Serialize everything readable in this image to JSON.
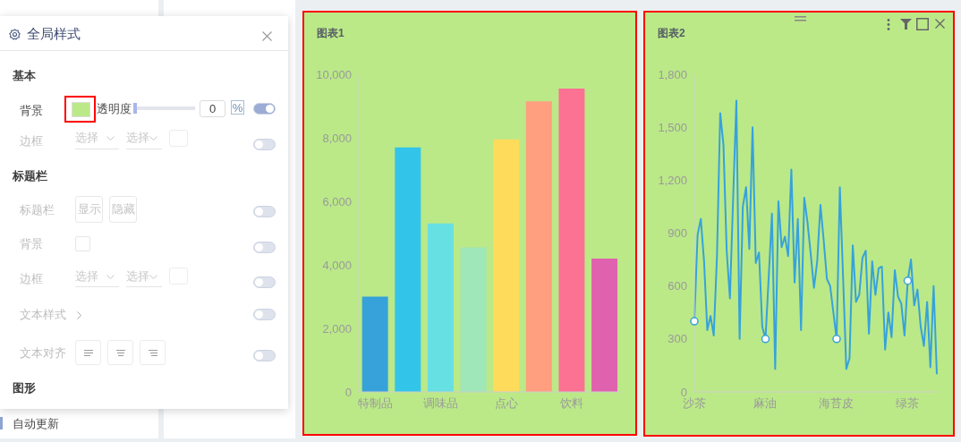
{
  "chart_data": [
    {
      "type": "other",
      "title": "全局样式",
      "annotations": [
        "基本",
        "背景",
        "透明度",
        "0",
        "%",
        "边框",
        "选择",
        "选择",
        "标题栏",
        "标题栏",
        "显示",
        "隐藏",
        "背景",
        "边框",
        "选择",
        "选择",
        "文本样式",
        "文本对齐",
        "图形",
        "自动更新"
      ]
    },
    {
      "type": "bar",
      "title": "图表1",
      "categories": [
        "特制品",
        null,
        "调味品",
        null,
        "点心",
        null,
        "饮料",
        null
      ],
      "values": [
        3000,
        7700,
        5300,
        4550,
        7950,
        9150,
        9550,
        4200
      ],
      "colors": [
        "#37a2da",
        "#32c5e9",
        "#67e0e3",
        "#9fe6b8",
        "#ffdb5c",
        "#ff9f7f",
        "#fb7293",
        "#e062ae"
      ],
      "ylim": [
        0,
        10000
      ],
      "yticks": [
        0,
        {
          "value": 2000,
          "label": "2,000"
        },
        {
          "value": 4000,
          "label": "4,000"
        },
        {
          "value": 6000,
          "label": "6,000"
        },
        {
          "value": 8000,
          "label": "8,000"
        },
        {
          "value": 10000,
          "label": "10,000"
        }
      ]
    },
    {
      "type": "line",
      "title": "图表2",
      "categories": [
        "沙茶",
        null,
        null,
        null,
        null,
        null,
        null,
        null,
        null,
        null,
        null,
        null,
        null,
        null,
        null,
        null,
        null,
        null,
        null,
        null,
        null,
        null,
        "麻油",
        null,
        null,
        null,
        null,
        null,
        null,
        null,
        null,
        null,
        null,
        null,
        null,
        null,
        null,
        null,
        null,
        null,
        null,
        null,
        null,
        null,
        "海苔皮",
        null,
        null,
        null,
        null,
        null,
        null,
        null,
        null,
        null,
        null,
        null,
        null,
        null,
        null,
        null,
        null,
        null,
        null,
        null,
        null,
        null,
        "绿茶",
        null,
        null,
        null,
        null,
        null,
        null,
        null,
        null,
        null
      ],
      "series": [
        {
          "color": "#37a2da",
          "marker": "none",
          "values": [
            400,
            890,
            980,
            740,
            350,
            430,
            320,
            770,
            1580,
            1400,
            800,
            530,
            1100,
            1650,
            300,
            1050,
            1160,
            810,
            1500,
            730,
            790,
            370,
            300,
            650,
            1010,
            130,
            1080,
            820,
            880,
            770,
            1260,
            620,
            980,
            350,
            1100,
            960,
            780,
            590,
            740,
            1060,
            860,
            640,
            600,
            450,
            300,
            1160,
            650,
            130,
            190,
            830,
            510,
            550,
            760,
            800,
            330,
            740,
            550,
            700,
            710,
            240,
            450,
            310,
            690,
            540,
            500,
            320,
            630,
            750,
            490,
            580,
            370,
            260,
            510,
            140,
            600,
            100
          ]
        },
        {
          "type": "scatter",
          "color": "#37a2da",
          "marker": "circle",
          "x": [
            "沙茶",
            "麻油",
            "海苔皮",
            "绿茶"
          ],
          "values": [
            400,
            300,
            300,
            630
          ]
        }
      ],
      "ylim": [
        0,
        1800
      ],
      "yticks": [
        0,
        300,
        600,
        900,
        {
          "value": 1200,
          "label": "1,200"
        },
        {
          "value": 1500,
          "label": "1,500"
        },
        {
          "value": 1800,
          "label": "1,800"
        }
      ]
    }
  ]
}
